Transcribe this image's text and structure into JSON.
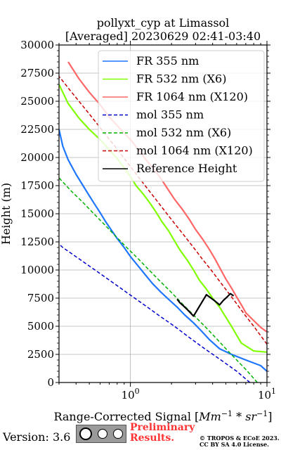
{
  "chart_data": {
    "type": "line",
    "title": "pollyxt_cyp at Limassol",
    "subtitle": "[Averaged] 20230629 02:41-03:40",
    "xlabel": "Range-Corrected Signal [Mm⁻¹ * sr⁻¹]",
    "ylabel": "Height (m)",
    "xscale": "log",
    "xlim": [
      0.3,
      10
    ],
    "ylim": [
      0,
      30000
    ],
    "grid": true,
    "legend_position": "top-right",
    "x_tick_labels": [
      {
        "value": 1,
        "base": "10",
        "exp": "0"
      },
      {
        "value": 10,
        "base": "10",
        "exp": "1"
      }
    ],
    "y_ticks": [
      0,
      2500,
      5000,
      7500,
      10000,
      12500,
      15000,
      17500,
      20000,
      22500,
      25000,
      27500,
      30000
    ],
    "series": [
      {
        "name": "FR 355 nm",
        "style": "solid",
        "color": "#1f77ff",
        "x": [
          10,
          9,
          7,
          5.5,
          4.5,
          3.8,
          3.3,
          2.9,
          2.5,
          2.2,
          1.9,
          1.65,
          1.45,
          1.3,
          1.15,
          1.0,
          0.9,
          0.8,
          0.72,
          0.65,
          0.6,
          0.55,
          0.5,
          0.45,
          0.4,
          0.35,
          0.32,
          0.3
        ],
        "y": [
          1000,
          1500,
          2000,
          2500,
          3000,
          3800,
          4600,
          5300,
          6000,
          6700,
          7400,
          8100,
          8800,
          9500,
          10300,
          11200,
          12000,
          12800,
          13600,
          14400,
          15100,
          15800,
          16600,
          17500,
          18500,
          19800,
          21000,
          22500
        ]
      },
      {
        "name": "FR 532 nm (X6)",
        "style": "solid",
        "color": "#80ff00",
        "x": [
          10,
          8,
          6.5,
          6,
          5.5,
          5,
          4.5,
          4,
          3.6,
          3.2,
          2.9,
          2.6,
          2.3,
          2.1,
          1.9,
          1.7,
          1.55,
          1.4,
          1.25,
          1.1,
          1.0,
          0.9,
          0.8,
          0.7,
          0.6,
          0.5,
          0.42,
          0.35,
          0.3
        ],
        "y": [
          2700,
          2800,
          3500,
          4200,
          5000,
          5800,
          6700,
          7500,
          8300,
          9100,
          10000,
          10900,
          11800,
          12600,
          13500,
          14300,
          15100,
          15900,
          16700,
          17500,
          18300,
          19100,
          19900,
          20700,
          21600,
          22500,
          23500,
          24800,
          26500
        ]
      },
      {
        "name": "FR 1064 nm (X120)",
        "style": "solid",
        "color": "#ff6666",
        "x": [
          10,
          9,
          8,
          7,
          6.5,
          6,
          5.5,
          5,
          4.6,
          4.2,
          3.8,
          3.4,
          3.0,
          2.7,
          2.4,
          2.1,
          1.9,
          1.7,
          1.5,
          1.3,
          1.15,
          1.0,
          0.85,
          0.7,
          0.6,
          0.5,
          0.42,
          0.35
        ],
        "y": [
          4500,
          4900,
          5500,
          6200,
          6900,
          7600,
          8400,
          9200,
          10000,
          10900,
          11800,
          12700,
          13600,
          14500,
          15400,
          16300,
          17100,
          18000,
          18900,
          19800,
          20700,
          21600,
          22500,
          23600,
          24700,
          25800,
          27000,
          28500
        ]
      },
      {
        "name": "mol 355 nm",
        "style": "dashed",
        "color": "#0000cc",
        "x": [
          7.5,
          6.0,
          4.6,
          3.5,
          2.7,
          2.1,
          1.6,
          1.23,
          0.94,
          0.72,
          0.55,
          0.42,
          0.32,
          0.3
        ],
        "y": [
          0,
          1000,
          2000,
          3000,
          4000,
          5000,
          6000,
          7000,
          8000,
          9000,
          10000,
          11000,
          12000,
          12300
        ]
      },
      {
        "name": "mol 532 nm (X6)",
        "style": "dashed",
        "color": "#00b300",
        "x": [
          8.5,
          7.2,
          6.0,
          5.0,
          4.2,
          3.5,
          2.9,
          2.4,
          2.0,
          1.65,
          1.37,
          1.14,
          0.94,
          0.78,
          0.65,
          0.54,
          0.45,
          0.37,
          0.31,
          0.3
        ],
        "y": [
          0,
          1000,
          2000,
          3000,
          4000,
          5000,
          6000,
          7000,
          8000,
          9000,
          10000,
          11000,
          12000,
          13000,
          14000,
          15000,
          16000,
          17000,
          18000,
          18200
        ]
      },
      {
        "name": "mol 1064 nm (X120)",
        "style": "dashed",
        "color": "#cc0000",
        "x": [
          10,
          9.2,
          8.0,
          6.9,
          6.0,
          5.2,
          4.5,
          3.9,
          3.35,
          2.9,
          2.5,
          2.15,
          1.85,
          1.6,
          1.38,
          1.19,
          1.03,
          0.89,
          0.77,
          0.66,
          0.57,
          0.49,
          0.42,
          0.36,
          0.31,
          0.3
        ],
        "y": [
          3400,
          4000,
          5000,
          6000,
          7000,
          8000,
          9000,
          10000,
          11000,
          12000,
          13000,
          14000,
          15000,
          16000,
          17000,
          18000,
          19000,
          20000,
          21000,
          22000,
          23000,
          24000,
          25000,
          26000,
          27000,
          27200
        ]
      },
      {
        "name": "Reference Height",
        "style": "solid",
        "color": "#000000",
        "x": [
          2.2,
          2.3,
          2.45,
          2.6,
          2.75,
          2.9,
          3.6,
          3.9,
          4.2,
          4.5,
          4.8,
          5.1,
          5.4,
          5.7
        ],
        "y": [
          7400,
          7100,
          6800,
          6500,
          6200,
          5900,
          7800,
          7500,
          7200,
          6900,
          7300,
          7600,
          7900,
          7700
        ]
      }
    ]
  },
  "footer": {
    "version": "Version: 3.6",
    "preliminary_line1": "Preliminary",
    "preliminary_line2": "Results.",
    "copyright_line1": "© TROPOS & ECoE 2023.",
    "copyright_line2": "CC BY SA 4.0 License."
  }
}
